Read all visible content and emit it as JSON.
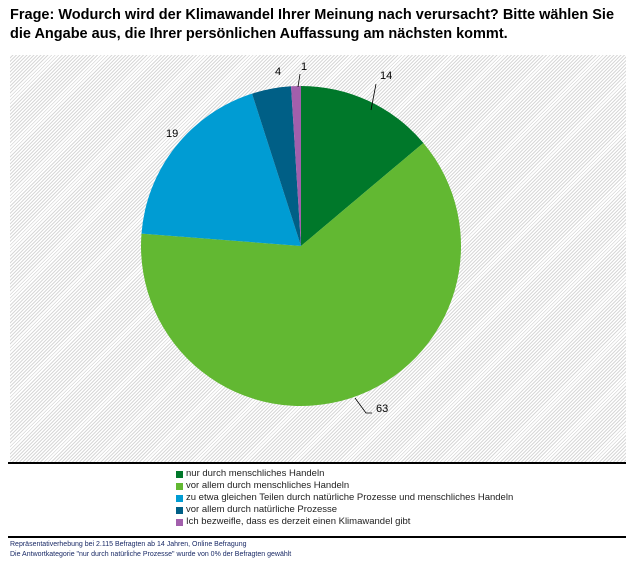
{
  "title": "Frage: Wodurch wird der Klimawandel Ihrer Meinung nach verursacht? Bitte wählen Sie die Angabe aus, die Ihrer persönlichen Auffassung am nächsten kommt.",
  "chart_data": {
    "type": "pie",
    "title": "Frage: Wodurch wird der Klimawandel Ihrer Meinung nach verursacht? Bitte wählen Sie die Angabe aus, die Ihrer persönlichen Auffassung am nächsten kommt.",
    "categories": [
      "nur durch menschliches Handeln",
      "vor allem durch menschliches Handeln",
      "zu etwa gleichen Teilen durch natürliche Prozesse und menschliches Handeln",
      "vor allem durch natürliche Prozesse",
      "Ich bezweifle, dass es derzeit einen Klimawandel gibt"
    ],
    "values": [
      14,
      63,
      19,
      4,
      1
    ],
    "labels": [
      "14",
      "63",
      "19",
      "4",
      "1"
    ],
    "colors": [
      "#00782a",
      "#62b832",
      "#009cd3",
      "#005f86",
      "#a25fac"
    ],
    "legend": "bottom"
  },
  "footnotes": [
    "Repräsentativerhebung bei 2.115 Befragten ab 14 Jahren, Online Befragung",
    "Die Antwortkategorie \"nur durch natürliche Prozesse\" wurde von 0% der Befragten gewählt"
  ]
}
